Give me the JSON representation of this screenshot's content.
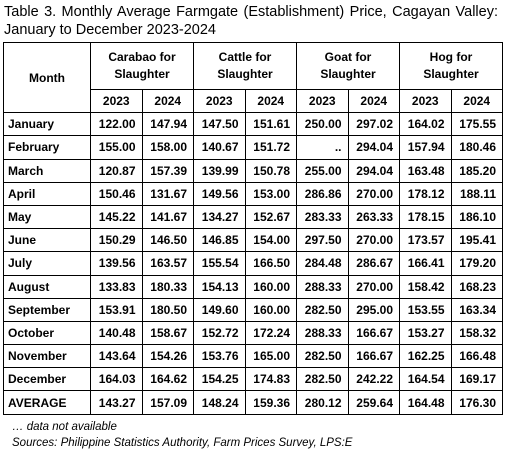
{
  "title": "Table 3. Monthly Average Farmgate (Establishment) Price, Cagayan Valley: January to December 2023-2024",
  "table": {
    "month_header": "Month",
    "groups": [
      "Carabao for Slaughter",
      "Cattle for Slaughter",
      "Goat for Slaughter",
      "Hog for Slaughter"
    ],
    "years": [
      "2023",
      "2024",
      "2023",
      "2024",
      "2023",
      "2024",
      "2023",
      "2024"
    ],
    "rows": [
      [
        "January",
        "122.00",
        "147.94",
        "147.50",
        "151.61",
        "250.00",
        "297.02",
        "164.02",
        "175.55"
      ],
      [
        "February",
        "155.00",
        "158.00",
        "140.67",
        "151.72",
        "..",
        "294.04",
        "157.94",
        "180.46"
      ],
      [
        "March",
        "120.87",
        "157.39",
        "139.99",
        "150.78",
        "255.00",
        "294.04",
        "163.48",
        "185.20"
      ],
      [
        "April",
        "150.46",
        "131.67",
        "149.56",
        "153.00",
        "286.86",
        "270.00",
        "178.12",
        "188.11"
      ],
      [
        "May",
        "145.22",
        "141.67",
        "134.27",
        "152.67",
        "283.33",
        "263.33",
        "178.15",
        "186.10"
      ],
      [
        "June",
        "150.29",
        "146.50",
        "146.85",
        "154.00",
        "297.50",
        "270.00",
        "173.57",
        "195.41"
      ],
      [
        "July",
        "139.56",
        "163.57",
        "155.54",
        "166.50",
        "284.48",
        "286.67",
        "166.41",
        "179.20"
      ],
      [
        "August",
        "133.83",
        "180.33",
        "154.13",
        "160.00",
        "288.33",
        "270.00",
        "158.42",
        "168.23"
      ],
      [
        "September",
        "153.91",
        "180.50",
        "149.60",
        "160.00",
        "282.50",
        "295.00",
        "153.55",
        "163.34"
      ],
      [
        "October",
        "140.48",
        "158.67",
        "152.72",
        "172.24",
        "288.33",
        "166.67",
        "153.27",
        "158.32"
      ],
      [
        "November",
        "143.64",
        "154.26",
        "153.76",
        "165.00",
        "282.50",
        "166.67",
        "162.25",
        "166.48"
      ],
      [
        "December",
        "164.03",
        "164.62",
        "154.25",
        "174.83",
        "282.50",
        "242.22",
        "164.54",
        "169.17"
      ],
      [
        "AVERAGE",
        "143.27",
        "157.09",
        "148.24",
        "159.36",
        "280.12",
        "259.64",
        "164.48",
        "176.30"
      ]
    ]
  },
  "notes": [
    "… data not available",
    "Sources: Philippine Statistics Authority, Farm Prices Survey, LPS:E"
  ]
}
